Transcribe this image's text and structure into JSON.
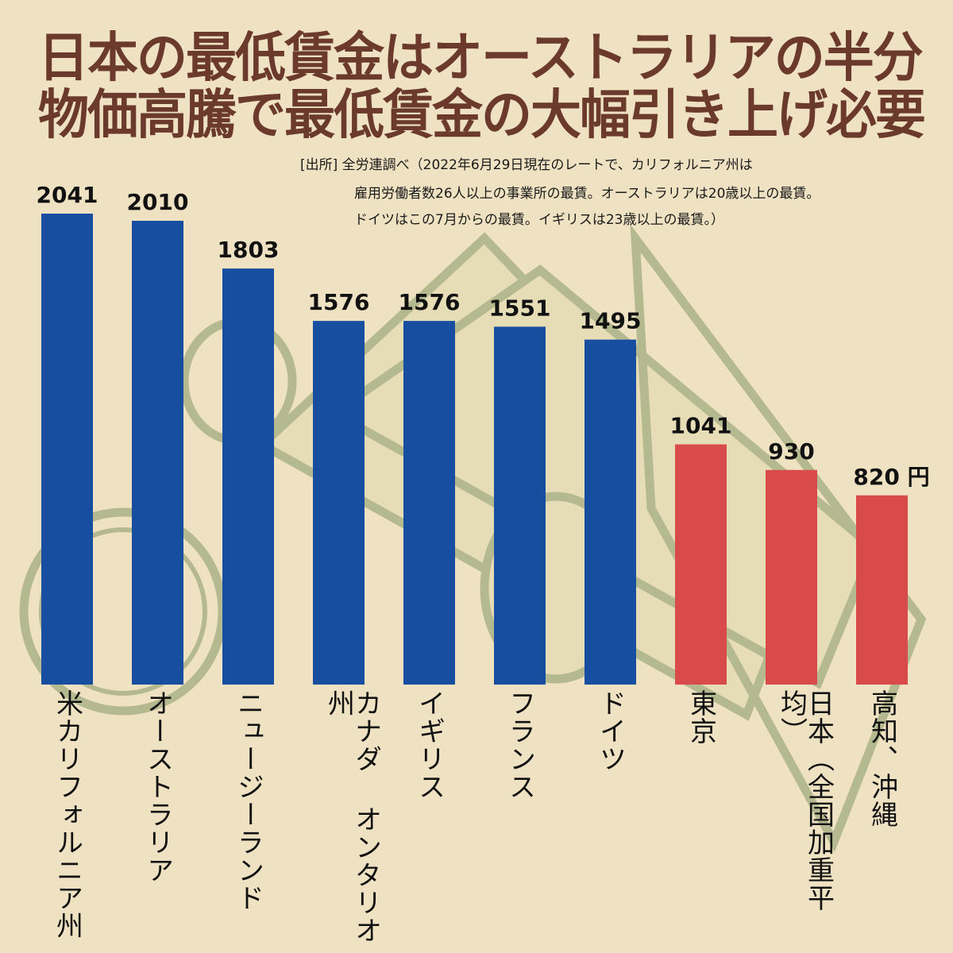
{
  "header": {
    "title_line1": "日本の最低賃金はオーストラリアの半分",
    "title_line2": "物価高騰で最低賃金の大幅引き上げ必要"
  },
  "source_note": {
    "line1": "[出所] 全労連調べ（2022年6月29日現在のレートで、カリフォルニア州は",
    "line2": "雇用労働者数26人以上の事業所の最賃。オーストラリアは20歳以上の最賃。",
    "line3": "ドイツはこの7月からの最賃。イギリスは23歳以上の最賃。）"
  },
  "colors": {
    "background": "#efe2c2",
    "title": "#6b3a2c",
    "foreign_bar": "#174ea0",
    "japan_bar": "#d94a4a",
    "decoration": "#b5b98f"
  },
  "background_decoration": [
    "coin-icon",
    "banknote-icon",
    "banknote-icon",
    "coin-icon"
  ],
  "chart_data": {
    "type": "bar",
    "title": "日本の最低賃金はオーストラリアの半分",
    "subtitle": "物価高騰で最低賃金の大幅引き上げ必要",
    "xlabel": "",
    "ylabel": "",
    "unit": "円",
    "ylim": [
      0,
      2041
    ],
    "grid": false,
    "legend": "none",
    "categories": [
      "米カリフォルニア州",
      "オーストラリア",
      "ニュージーランド",
      "カナダ オンタリオ州",
      "イギリス",
      "フランス",
      "ドイツ",
      "東京",
      "日本（全国加重平均）",
      "高知、沖縄"
    ],
    "values": [
      2041,
      2010,
      1803,
      1576,
      1576,
      1551,
      1495,
      1041,
      930,
      820
    ],
    "value_labels": [
      "2041",
      "2010",
      "1803",
      "1576",
      "1576",
      "1551",
      "1495",
      "1041",
      "930",
      "820 円"
    ],
    "groups": [
      "foreign",
      "foreign",
      "foreign",
      "foreign",
      "foreign",
      "foreign",
      "foreign",
      "japan",
      "japan",
      "japan"
    ]
  }
}
